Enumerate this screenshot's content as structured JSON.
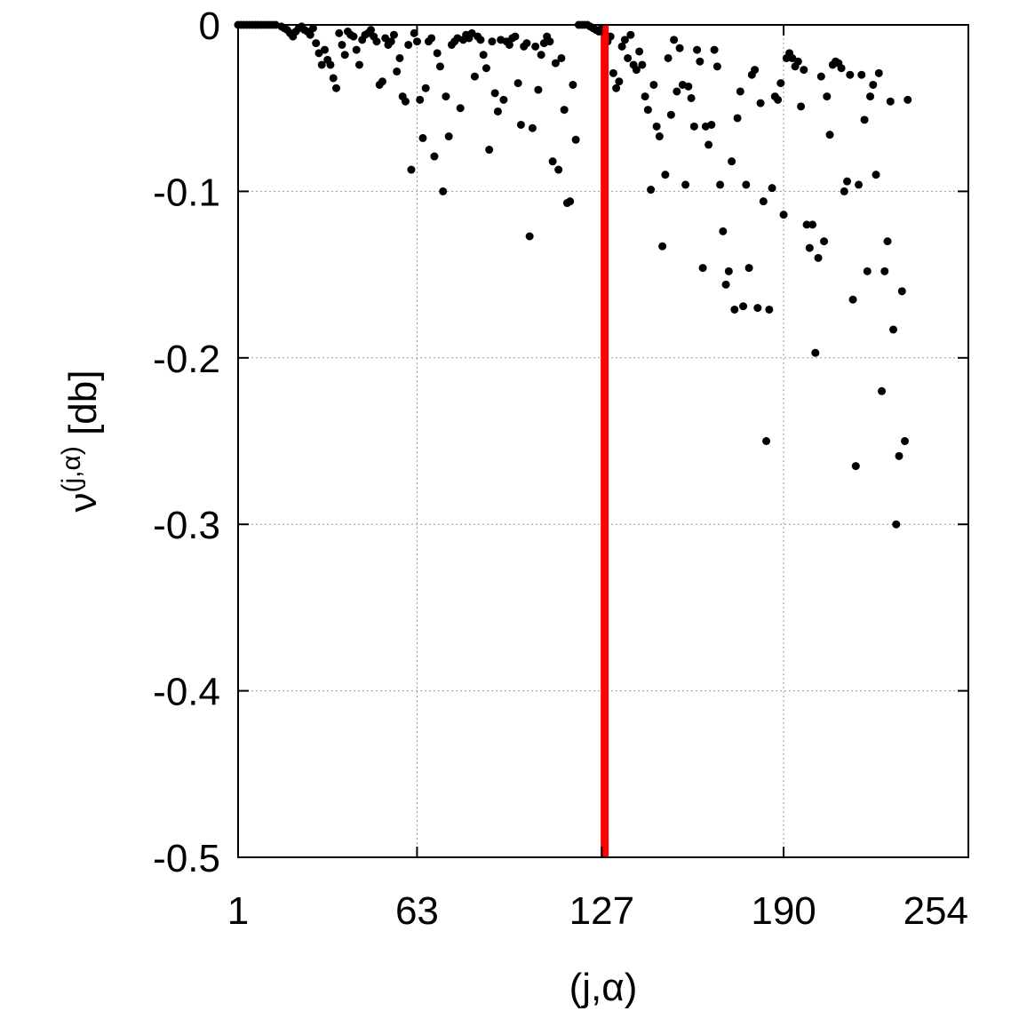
{
  "chart_data": {
    "type": "scatter",
    "title": "",
    "xlabel": "(j,α)",
    "ylabel": {
      "base": "ν",
      "superscript": "(j,α)",
      "unit": "[db]"
    },
    "xlim": [
      1,
      254
    ],
    "ylim": [
      -0.5,
      0
    ],
    "xticks": [
      1,
      63,
      127,
      190,
      254
    ],
    "xtick_labels": [
      "1",
      "63",
      "127",
      "190",
      "254"
    ],
    "yticks": [
      0,
      -0.1,
      -0.2,
      -0.3,
      -0.4,
      -0.5
    ],
    "ytick_labels": [
      "0",
      "-0.1",
      "-0.2",
      "-0.3",
      "-0.4",
      "-0.5"
    ],
    "grid": true,
    "legend": "none",
    "marker_color": "#000000",
    "vline": {
      "x": 128,
      "color": "#ff0000"
    },
    "series": [
      {
        "points": [
          [
            1,
            0
          ],
          [
            2,
            0
          ],
          [
            3,
            0
          ],
          [
            4,
            0
          ],
          [
            5,
            0
          ],
          [
            6,
            0
          ],
          [
            7,
            0
          ],
          [
            8,
            0
          ],
          [
            9,
            0
          ],
          [
            10,
            0
          ],
          [
            11,
            0
          ],
          [
            12,
            0
          ],
          [
            13,
            0
          ],
          [
            14,
            0
          ],
          [
            16,
            -0.001
          ],
          [
            17,
            -0.002
          ],
          [
            18,
            -0.003
          ],
          [
            19,
            -0.005
          ],
          [
            20,
            -0.007
          ],
          [
            21,
            -0.004
          ],
          [
            22,
            -0.002
          ],
          [
            23,
            -0.001
          ],
          [
            24,
            -0.003
          ],
          [
            25,
            -0.004
          ],
          [
            26,
            -0.006
          ],
          [
            27,
            -0.002
          ],
          [
            28,
            -0.011
          ],
          [
            29,
            -0.017
          ],
          [
            30,
            -0.024
          ],
          [
            31,
            -0.015
          ],
          [
            32,
            -0.021
          ],
          [
            33,
            -0.024
          ],
          [
            34,
            -0.032
          ],
          [
            35,
            -0.038
          ],
          [
            36,
            -0.005
          ],
          [
            37,
            -0.012
          ],
          [
            38,
            -0.018
          ],
          [
            39,
            -0.004
          ],
          [
            40,
            -0.006
          ],
          [
            41,
            -0.007
          ],
          [
            42,
            -0.015
          ],
          [
            43,
            -0.024
          ],
          [
            44,
            -0.009
          ],
          [
            45,
            -0.006
          ],
          [
            46,
            -0.005
          ],
          [
            47,
            -0.003
          ],
          [
            48,
            -0.007
          ],
          [
            49,
            -0.01
          ],
          [
            50,
            -0.036
          ],
          [
            51,
            -0.034
          ],
          [
            52,
            -0.008
          ],
          [
            53,
            -0.012
          ],
          [
            54,
            -0.01
          ],
          [
            55,
            -0.006
          ],
          [
            56,
            -0.028
          ],
          [
            57,
            -0.02
          ],
          [
            58,
            -0.043
          ],
          [
            59,
            -0.046
          ],
          [
            60,
            -0.012
          ],
          [
            61,
            -0.087
          ],
          [
            62,
            -0.005
          ],
          [
            63,
            -0.01
          ],
          [
            64,
            -0.045
          ],
          [
            65,
            -0.068
          ],
          [
            66,
            -0.038
          ],
          [
            67,
            -0.01
          ],
          [
            68,
            -0.008
          ],
          [
            69,
            -0.079
          ],
          [
            70,
            -0.017
          ],
          [
            71,
            -0.025
          ],
          [
            72,
            -0.1
          ],
          [
            73,
            -0.043
          ],
          [
            74,
            -0.067
          ],
          [
            75,
            -0.012
          ],
          [
            76,
            -0.01
          ],
          [
            77,
            -0.008
          ],
          [
            78,
            -0.05
          ],
          [
            79,
            -0.009
          ],
          [
            80,
            -0.006
          ],
          [
            81,
            -0.008
          ],
          [
            82,
            -0.005
          ],
          [
            83,
            -0.031
          ],
          [
            84,
            -0.007
          ],
          [
            85,
            -0.009
          ],
          [
            86,
            -0.018
          ],
          [
            87,
            -0.026
          ],
          [
            88,
            -0.075
          ],
          [
            89,
            -0.01
          ],
          [
            90,
            -0.041
          ],
          [
            91,
            -0.052
          ],
          [
            92,
            -0.009
          ],
          [
            93,
            -0.045
          ],
          [
            94,
            -0.01
          ],
          [
            95,
            -0.012
          ],
          [
            96,
            -0.008
          ],
          [
            97,
            -0.007
          ],
          [
            98,
            -0.035
          ],
          [
            99,
            -0.06
          ],
          [
            100,
            -0.013
          ],
          [
            101,
            -0.011
          ],
          [
            102,
            -0.127
          ],
          [
            103,
            -0.062
          ],
          [
            104,
            -0.013
          ],
          [
            105,
            -0.039
          ],
          [
            106,
            -0.018
          ],
          [
            107,
            -0.011
          ],
          [
            108,
            -0.007
          ],
          [
            109,
            -0.01
          ],
          [
            110,
            -0.082
          ],
          [
            111,
            -0.023
          ],
          [
            112,
            -0.087
          ],
          [
            113,
            -0.02
          ],
          [
            114,
            -0.051
          ],
          [
            115,
            -0.107
          ],
          [
            116,
            -0.106
          ],
          [
            117,
            -0.036
          ],
          [
            118,
            -0.069
          ],
          [
            119,
            0
          ],
          [
            120,
            0
          ],
          [
            121,
            0
          ],
          [
            122,
            0
          ],
          [
            123,
            -0.001
          ],
          [
            124,
            -0.002
          ],
          [
            125,
            -0.003
          ],
          [
            126,
            -0.004
          ],
          [
            127,
            -0.002
          ],
          [
            128,
            -0.005
          ],
          [
            129,
            -0.01
          ],
          [
            130,
            -0.007
          ],
          [
            131,
            -0.029
          ],
          [
            132,
            -0.038
          ],
          [
            133,
            -0.034
          ],
          [
            134,
            -0.013
          ],
          [
            135,
            -0.009
          ],
          [
            136,
            -0.02
          ],
          [
            137,
            -0.006
          ],
          [
            138,
            -0.024
          ],
          [
            139,
            -0.027
          ],
          [
            140,
            -0.016
          ],
          [
            141,
            -0.024
          ],
          [
            142,
            -0.043
          ],
          [
            143,
            -0.051
          ],
          [
            144,
            -0.099
          ],
          [
            145,
            -0.036
          ],
          [
            146,
            -0.061
          ],
          [
            147,
            -0.067
          ],
          [
            148,
            -0.133
          ],
          [
            149,
            -0.09
          ],
          [
            150,
            -0.02
          ],
          [
            151,
            -0.054
          ],
          [
            152,
            -0.009
          ],
          [
            153,
            -0.04
          ],
          [
            154,
            -0.014
          ],
          [
            155,
            -0.036
          ],
          [
            156,
            -0.096
          ],
          [
            157,
            -0.037
          ],
          [
            158,
            -0.044
          ],
          [
            159,
            -0.061
          ],
          [
            160,
            -0.015
          ],
          [
            161,
            -0.022
          ],
          [
            162,
            -0.146
          ],
          [
            163,
            -0.061
          ],
          [
            164,
            -0.072
          ],
          [
            165,
            -0.06
          ],
          [
            166,
            -0.015
          ],
          [
            167,
            -0.025
          ],
          [
            168,
            -0.096
          ],
          [
            169,
            -0.124
          ],
          [
            170,
            -0.156
          ],
          [
            171,
            -0.148
          ],
          [
            172,
            -0.082
          ],
          [
            173,
            -0.171
          ],
          [
            174,
            -0.056
          ],
          [
            175,
            -0.04
          ],
          [
            176,
            -0.169
          ],
          [
            177,
            -0.096
          ],
          [
            178,
            -0.146
          ],
          [
            179,
            -0.03
          ],
          [
            180,
            -0.027
          ],
          [
            181,
            -0.17
          ],
          [
            182,
            -0.047
          ],
          [
            183,
            -0.106
          ],
          [
            184,
            -0.25
          ],
          [
            185,
            -0.171
          ],
          [
            186,
            -0.098
          ],
          [
            187,
            -0.043
          ],
          [
            188,
            -0.045
          ],
          [
            189,
            -0.035
          ],
          [
            190,
            -0.114
          ],
          [
            191,
            -0.02
          ],
          [
            192,
            -0.017
          ],
          [
            193,
            -0.02
          ],
          [
            194,
            -0.025
          ],
          [
            195,
            -0.022
          ],
          [
            196,
            -0.049
          ],
          [
            197,
            -0.027
          ],
          [
            198,
            -0.12
          ],
          [
            199,
            -0.134
          ],
          [
            200,
            -0.12
          ],
          [
            201,
            -0.197
          ],
          [
            202,
            -0.14
          ],
          [
            203,
            -0.031
          ],
          [
            204,
            -0.13
          ],
          [
            205,
            -0.043
          ],
          [
            206,
            -0.066
          ],
          [
            207,
            -0.024
          ],
          [
            208,
            -0.022
          ],
          [
            209,
            -0.023
          ],
          [
            210,
            -0.026
          ],
          [
            211,
            -0.1
          ],
          [
            212,
            -0.094
          ],
          [
            213,
            -0.03
          ],
          [
            214,
            -0.165
          ],
          [
            215,
            -0.265
          ],
          [
            216,
            -0.096
          ],
          [
            217,
            -0.03
          ],
          [
            218,
            -0.057
          ],
          [
            219,
            -0.148
          ],
          [
            220,
            -0.043
          ],
          [
            221,
            -0.036
          ],
          [
            222,
            -0.09
          ],
          [
            223,
            -0.029
          ],
          [
            224,
            -0.22
          ],
          [
            225,
            -0.148
          ],
          [
            226,
            -0.13
          ],
          [
            227,
            -0.046
          ],
          [
            228,
            -0.183
          ],
          [
            229,
            -0.3
          ],
          [
            230,
            -0.259
          ],
          [
            231,
            -0.16
          ],
          [
            232,
            -0.25
          ],
          [
            233,
            -0.045
          ]
        ]
      }
    ]
  }
}
